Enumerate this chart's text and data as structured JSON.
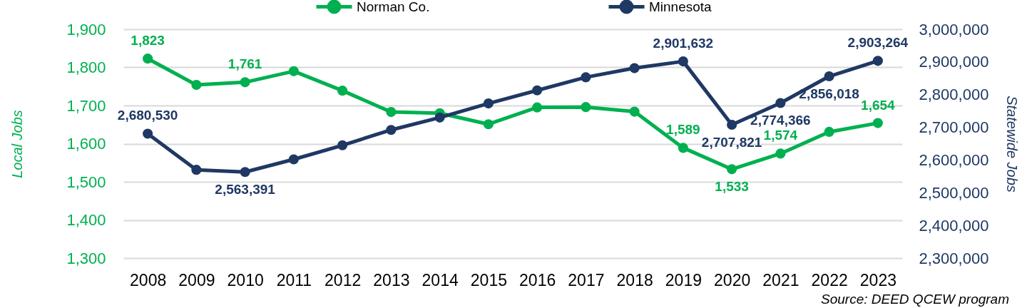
{
  "chart_data": {
    "type": "line",
    "ylabel": "Local Jobs",
    "y2label": "Statewide Jobs",
    "annotations": [
      "Source: DEED QCEW program"
    ],
    "categories": [
      "2008",
      "2009",
      "2010",
      "2011",
      "2012",
      "2013",
      "2014",
      "2015",
      "2016",
      "2017",
      "2018",
      "2019",
      "2020",
      "2021",
      "2022",
      "2023"
    ],
    "series": [
      {
        "name": "Norman Co.",
        "color": "#00b050",
        "values": [
          1823,
          1754,
          1761,
          1790,
          1739,
          1683,
          1680,
          1651,
          1695,
          1696,
          1684,
          1589,
          1533,
          1574,
          1631,
          1654
        ],
        "value_labels": [
          "1,823",
          null,
          "1,761",
          null,
          null,
          null,
          null,
          null,
          null,
          null,
          null,
          "1,589",
          "1,533",
          "1,574",
          null,
          "1,654"
        ]
      },
      {
        "name": "Minnesota",
        "color": "#1f3864",
        "axis": "y2",
        "values": [
          2680530,
          2570000,
          2563391,
          2602000,
          2645000,
          2692000,
          2730000,
          2773000,
          2813000,
          2853000,
          2881000,
          2901632,
          2707821,
          2774366,
          2856018,
          2903264
        ],
        "value_labels": [
          "2,680,530",
          null,
          "2,563,391",
          null,
          null,
          null,
          null,
          null,
          null,
          null,
          null,
          "2,901,632",
          "2,707,821",
          "2,774,366",
          "2,856,018",
          "2,903,264"
        ]
      }
    ],
    "ylim": [
      1300,
      1900
    ],
    "yticks": [
      {
        "value": 1300,
        "label": "1,300"
      },
      {
        "value": 1400,
        "label": "1,400"
      },
      {
        "value": 1500,
        "label": "1,500"
      },
      {
        "value": 1600,
        "label": "1,600"
      },
      {
        "value": 1700,
        "label": "1,700"
      },
      {
        "value": 1800,
        "label": "1,800"
      },
      {
        "value": 1900,
        "label": "1,900"
      }
    ],
    "y2lim": [
      2300000,
      3000000
    ],
    "y2ticks": [
      {
        "value": 2300000,
        "label": "2,300,000"
      },
      {
        "value": 2400000,
        "label": "2,400,000"
      },
      {
        "value": 2500000,
        "label": "2,500,000"
      },
      {
        "value": 2600000,
        "label": "2,600,000"
      },
      {
        "value": 2700000,
        "label": "2,700,000"
      },
      {
        "value": 2800000,
        "label": "2,800,000"
      },
      {
        "value": 2900000,
        "label": "2,900,000"
      },
      {
        "value": 3000000,
        "label": "3,000,000"
      }
    ],
    "grid": "y",
    "legend": "top",
    "marker": "circle",
    "line_style": "solid"
  }
}
